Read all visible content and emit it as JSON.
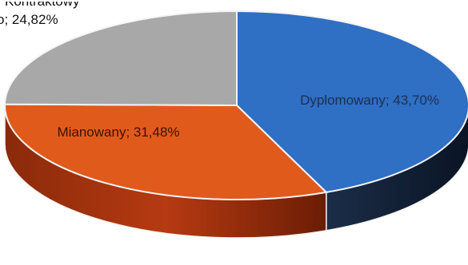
{
  "chart_data": {
    "type": "pie",
    "style": "3d",
    "slices": [
      {
        "name": "Dyplomowany",
        "value": 43.7,
        "label": "Dyplomowany; 43,70%",
        "color": "#2F6FC4"
      },
      {
        "name": "Mianowany",
        "value": 31.48,
        "label": "Mianowany; 31,48%",
        "color": "#E05A1C"
      },
      {
        "name": "Kontraktowy",
        "value": 24.82,
        "label": "o; 24,82%",
        "color": "#A8A8A8"
      }
    ],
    "outside_label_partial": "Kontraktowy",
    "legend": "none"
  }
}
